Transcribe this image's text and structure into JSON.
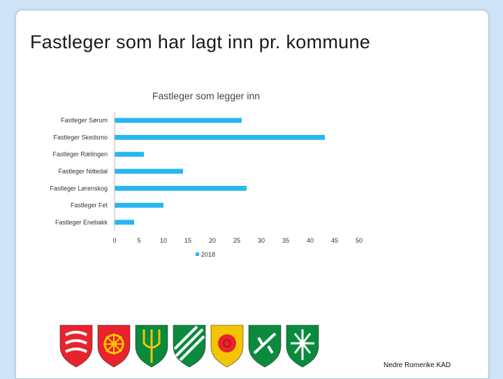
{
  "slide": {
    "title": "Fastleger som har lagt inn pr. kommune",
    "footer": "Nedre Romerike KAD"
  },
  "colors": {
    "bar": "#29b6f0",
    "background": "#cfe3f7",
    "axis": "#bbbbbb"
  },
  "crests": [
    {
      "name": "sorum-crest",
      "bg": "#e8232d",
      "fg": "#ffffff"
    },
    {
      "name": "skedsmo-crest",
      "bg": "#e8232d",
      "fg": "#f2c500"
    },
    {
      "name": "raelingen-crest",
      "bg": "#0a8a3c",
      "fg": "#f2c500"
    },
    {
      "name": "nittedal-crest",
      "bg": "#0a8a3c",
      "fg": "#ffffff"
    },
    {
      "name": "lorenskog-crest",
      "bg": "#f2c500",
      "fg": "#e8232d"
    },
    {
      "name": "fet-crest",
      "bg": "#0a8a3c",
      "fg": "#ffffff"
    },
    {
      "name": "enebakk-crest",
      "bg": "#0a8a3c",
      "fg": "#ffffff"
    }
  ],
  "chart_data": {
    "type": "bar",
    "orientation": "horizontal",
    "title": "Fastleger som legger inn",
    "categories": [
      "Fastleger Sørum",
      "Fastleger Skedsmo",
      "Fastleger Rælingen",
      "Fastleger Nittedal",
      "Fastleger Lørenskog",
      "Fastleger Fet",
      "Fastleger Enebakk"
    ],
    "series": [
      {
        "name": "2018",
        "values": [
          26,
          43,
          6,
          14,
          27,
          10,
          4
        ]
      }
    ],
    "xlim": [
      0,
      50
    ],
    "xticks": [
      "0",
      "5",
      "10",
      "15",
      "20",
      "25",
      "30",
      "35",
      "40",
      "45",
      "50"
    ],
    "grid": false,
    "legend_position": "bottom"
  }
}
